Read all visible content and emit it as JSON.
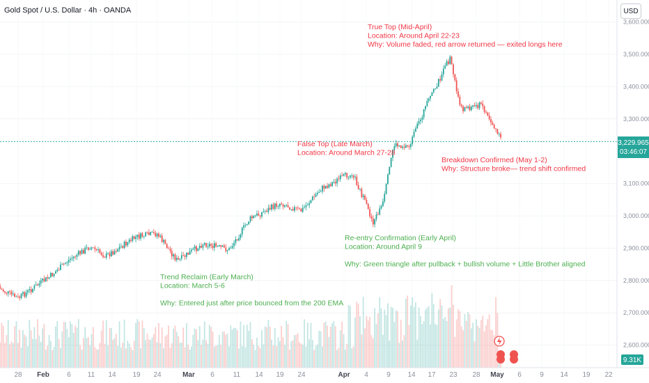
{
  "header": {
    "title": "Gold Spot / U.S. Dollar · 4h · OANDA",
    "currency_button": "USD"
  },
  "price_tag": {
    "price": "3,229.965",
    "countdown": "03:46:07"
  },
  "volume_tag": "9.31K",
  "colors": {
    "up": "#26a69a",
    "down": "#ef5350",
    "annotation_red": "#f23645",
    "annotation_green": "#4caf50",
    "axis_text": "#8a8f9c",
    "price_line": "#26a69a"
  },
  "icons": {
    "lightning": "lightning-icon",
    "indicator": "flag-badge-icon"
  },
  "chart_data": {
    "type": "candlestick",
    "title": "Gold Spot / U.S. Dollar · 4h · OANDA",
    "y_axis": {
      "ticks": [
        "3,600.000",
        "3,500.000",
        "3,400.000",
        "3,300.000",
        "3,100.000",
        "3,000.000",
        "2,900.000",
        "2,800.000",
        "2,700.000",
        "2,600.000"
      ],
      "tick_values": [
        3600,
        3500,
        3400,
        3300,
        3100,
        3000,
        2900,
        2800,
        2700,
        2600
      ],
      "range": [
        2568,
        3625
      ]
    },
    "x_axis": {
      "labels": [
        "28",
        "Feb",
        "6",
        "11",
        "14",
        "19",
        "24",
        "Mar",
        "6",
        "11",
        "14",
        "19",
        "24",
        "Apr",
        "4",
        "9",
        "14",
        "17",
        "23",
        "28",
        "May",
        "6",
        "9",
        "14",
        "19",
        "22"
      ],
      "bold": [
        "Feb",
        "Mar",
        "Apr",
        "May"
      ]
    },
    "current_price": 3229.965,
    "price_path": [
      {
        "date": "2025-01-23",
        "price": 2785
      },
      {
        "date": "2025-01-28",
        "price": 2745
      },
      {
        "date": "2025-02-03",
        "price": 2810
      },
      {
        "date": "2025-02-07",
        "price": 2865
      },
      {
        "date": "2025-02-11",
        "price": 2905
      },
      {
        "date": "2025-02-14",
        "price": 2875
      },
      {
        "date": "2025-02-20",
        "price": 2935
      },
      {
        "date": "2025-02-24",
        "price": 2945
      },
      {
        "date": "2025-02-28",
        "price": 2860
      },
      {
        "date": "2025-03-05",
        "price": 2915
      },
      {
        "date": "2025-03-10",
        "price": 2895
      },
      {
        "date": "2025-03-14",
        "price": 2990
      },
      {
        "date": "2025-03-20",
        "price": 3040
      },
      {
        "date": "2025-03-24",
        "price": 3015
      },
      {
        "date": "2025-03-28",
        "price": 3085
      },
      {
        "date": "2025-04-03",
        "price": 3135
      },
      {
        "date": "2025-04-07",
        "price": 2980
      },
      {
        "date": "2025-04-09",
        "price": 3040
      },
      {
        "date": "2025-04-11",
        "price": 3220
      },
      {
        "date": "2025-04-14",
        "price": 3215
      },
      {
        "date": "2025-04-17",
        "price": 3330
      },
      {
        "date": "2025-04-22",
        "price": 3490
      },
      {
        "date": "2025-04-24",
        "price": 3330
      },
      {
        "date": "2025-04-28",
        "price": 3345
      },
      {
        "date": "2025-04-30",
        "price": 3290
      },
      {
        "date": "2025-05-02",
        "price": 3230
      }
    ],
    "annotations": [
      {
        "id": "true-top",
        "color": "red",
        "lines": [
          "True Top (Mid-April)",
          "Location: Around April 22-23",
          "Why: Volume faded, red arrow returned — exited longs here"
        ]
      },
      {
        "id": "false-top",
        "color": "red",
        "lines": [
          "False Top (Late March)",
          "Location: Around March 27-28"
        ]
      },
      {
        "id": "breakdown",
        "color": "red",
        "lines": [
          "Breakdown Confirmed (May 1-2)",
          "Why: Structure broke— trend shift confirmed"
        ]
      },
      {
        "id": "reentry",
        "color": "green",
        "lines": [
          "Re-entry Confirmation (Early April)",
          "Location: Around April 9",
          "",
          "Why: Green triangle after pullback + bullish volume + Little Brother aligned"
        ]
      },
      {
        "id": "trend-reclaim",
        "color": "green",
        "lines": [
          "Trend Reclaim (Early March)",
          "Location: March 5-6",
          "",
          "Why: Entered just after price bounced from the 200 EMA"
        ]
      }
    ]
  }
}
